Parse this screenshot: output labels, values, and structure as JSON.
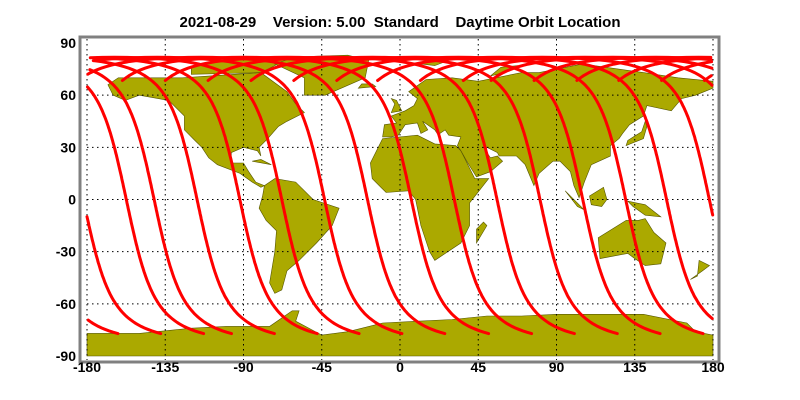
{
  "title": "2021-08-29    Version: 5.00  Standard    Daytime Orbit Location",
  "colors": {
    "land": "#aba900",
    "coast": "#555500",
    "orbit": "#ff0000",
    "frame": "#808080",
    "grid": "#000000"
  },
  "chart_data": {
    "type": "map",
    "projection": "equirectangular",
    "xlim": [
      -180,
      180
    ],
    "ylim": [
      -90,
      90
    ],
    "xticks": [
      "-180",
      "-135",
      "-90",
      "-45",
      "0",
      "45",
      "90",
      "135",
      "180"
    ],
    "yticks": [
      "90",
      "60",
      "30",
      "0",
      "-30",
      "-60",
      "-90"
    ],
    "grid": true,
    "orbit_tracks_equator_crossing_lon": [
      -157.4,
      -141.4,
      -116.7,
      -92.1,
      -68.0,
      -43.4,
      -18.7,
      6.5,
      31.2,
      55.8,
      80.5,
      105.1,
      129.8,
      153.3,
      177.9
    ]
  }
}
